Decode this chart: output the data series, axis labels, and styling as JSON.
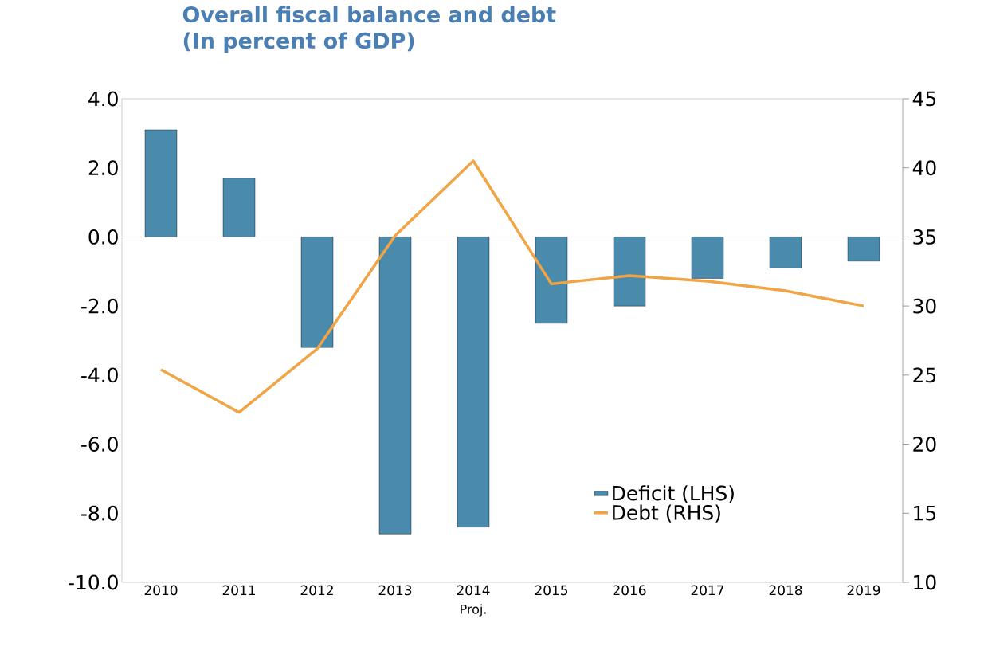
{
  "chart_data": {
    "type": "bar",
    "title": "Overall fiscal balance and debt",
    "subtitle": "(In percent of GDP)",
    "categories": [
      "2010",
      "2011",
      "2012",
      "2013",
      "2014",
      "2015",
      "2016",
      "2017",
      "2018",
      "2019"
    ],
    "series": [
      {
        "name": "Deficit (LHS)",
        "color": "#4a8bad",
        "values": [
          3.1,
          1.7,
          -3.2,
          -8.6,
          -8.4,
          -2.5,
          -2.0,
          -1.2,
          -0.9,
          -0.7
        ]
      },
      {
        "name": "Debt (RHS)",
        "type": "line",
        "axis": "y2",
        "color": "#f0a444",
        "values": [
          25.4,
          22.3,
          26.9,
          35.1,
          40.5,
          31.6,
          32.2,
          31.8,
          31.1,
          30.0
        ]
      }
    ],
    "ylim": [
      -10,
      4
    ],
    "yticks": [
      {
        "value": -10,
        "label": "-10.0"
      },
      {
        "value": -8,
        "label": "-8.0"
      },
      {
        "value": -6,
        "label": "-6.0"
      },
      {
        "value": -4,
        "label": "-4.0"
      },
      {
        "value": -2,
        "label": "-2.0"
      },
      {
        "value": 0,
        "label": "0.0"
      },
      {
        "value": 2,
        "label": "2.0"
      },
      {
        "value": 4,
        "label": "4.0"
      }
    ],
    "y2lim": [
      10,
      45
    ],
    "y2ticks": [
      10,
      15,
      20,
      25,
      30,
      35,
      40,
      45
    ],
    "annotations": [
      "Proj."
    ],
    "ref_lines": [
      {
        "axis": "y",
        "value": 0,
        "color": "#a0a0a0"
      }
    ],
    "legend": "bottom right",
    "grid": false
  }
}
